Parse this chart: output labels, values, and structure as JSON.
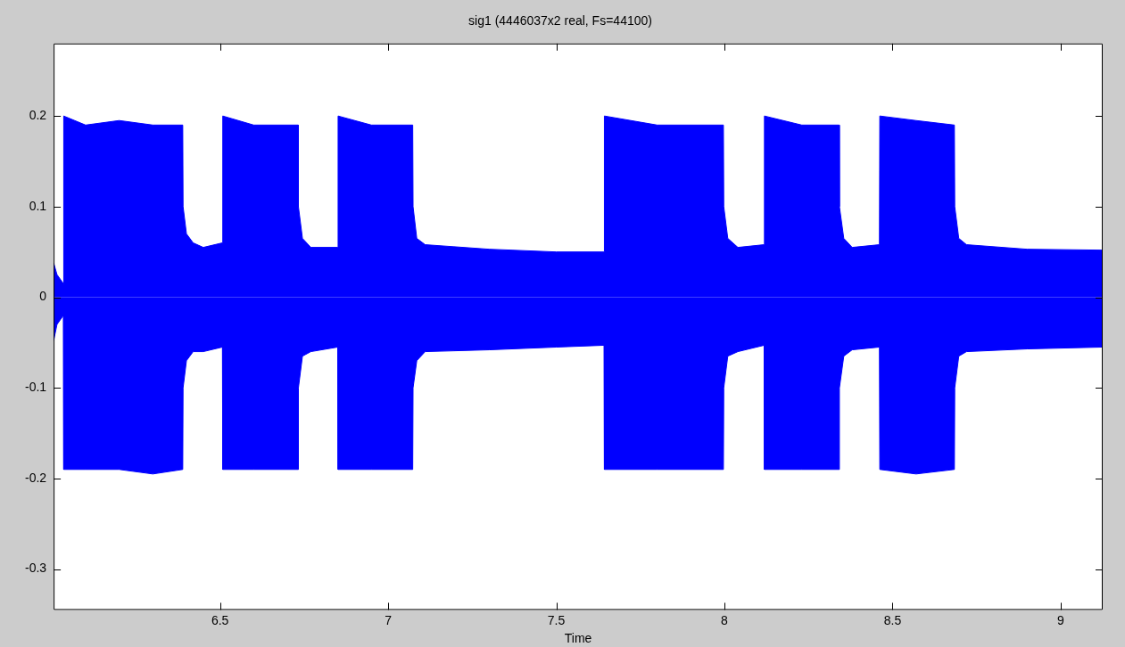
{
  "chart_data": {
    "type": "area",
    "title": "sig1 (4446037x2 real, Fs=44100)",
    "xlabel": "Time",
    "xlim": [
      6.005,
      9.125
    ],
    "xticks": [
      6.5,
      7,
      7.5,
      8,
      8.5,
      9
    ],
    "ylim": [
      -0.345,
      0.28
    ],
    "yticks": [
      -0.3,
      -0.2,
      -0.1,
      0,
      0.1,
      0.2
    ],
    "grid": false,
    "legend": false,
    "x": [
      6.005,
      6.015,
      6.034,
      6.035,
      6.1,
      6.2,
      6.3,
      6.389,
      6.39,
      6.4,
      6.42,
      6.45,
      6.507,
      6.508,
      6.6,
      6.732,
      6.733,
      6.745,
      6.77,
      6.85,
      6.851,
      6.95,
      7.073,
      7.074,
      7.085,
      7.11,
      7.3,
      7.5,
      7.642,
      7.643,
      7.8,
      7.997,
      7.998,
      8.01,
      8.04,
      8.118,
      8.119,
      8.23,
      8.341,
      8.342,
      8.355,
      8.38,
      8.461,
      8.462,
      8.57,
      8.684,
      8.685,
      8.697,
      8.72,
      8.9,
      9.125
    ],
    "series": [
      {
        "color": "#0000ff",
        "values": [
          0.038,
          0.025,
          0.015,
          0.2,
          0.19,
          0.195,
          0.19,
          0.19,
          0.1,
          0.07,
          0.06,
          0.055,
          0.06,
          0.2,
          0.19,
          0.19,
          0.1,
          0.065,
          0.055,
          0.055,
          0.2,
          0.19,
          0.19,
          0.1,
          0.065,
          0.058,
          0.053,
          0.05,
          0.05,
          0.2,
          0.19,
          0.19,
          0.1,
          0.065,
          0.055,
          0.058,
          0.2,
          0.19,
          0.19,
          0.1,
          0.065,
          0.055,
          0.058,
          0.2,
          0.195,
          0.19,
          0.1,
          0.065,
          0.058,
          0.053,
          0.052
        ]
      },
      {
        "color": "#0000ff",
        "values": [
          -0.048,
          -0.03,
          -0.02,
          -0.19,
          -0.19,
          -0.19,
          -0.195,
          -0.19,
          -0.1,
          -0.07,
          -0.06,
          -0.06,
          -0.055,
          -0.19,
          -0.19,
          -0.19,
          -0.1,
          -0.065,
          -0.06,
          -0.055,
          -0.19,
          -0.19,
          -0.19,
          -0.1,
          -0.07,
          -0.06,
          -0.058,
          -0.055,
          -0.053,
          -0.19,
          -0.19,
          -0.19,
          -0.1,
          -0.065,
          -0.06,
          -0.053,
          -0.19,
          -0.19,
          -0.19,
          -0.1,
          -0.065,
          -0.058,
          -0.055,
          -0.19,
          -0.195,
          -0.19,
          -0.1,
          -0.065,
          -0.06,
          -0.057,
          -0.055
        ]
      }
    ]
  }
}
